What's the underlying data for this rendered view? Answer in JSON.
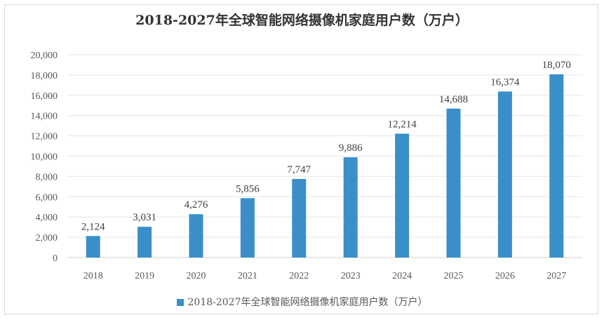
{
  "chart_data": {
    "type": "bar",
    "title": "2018-2027年全球智能网络摄像机家庭用户数（万户）",
    "categories": [
      "2018",
      "2019",
      "2020",
      "2021",
      "2022",
      "2023",
      "2024",
      "2025",
      "2026",
      "2027"
    ],
    "series": [
      {
        "name": "2018-2027年全球智能网络摄像机家庭用户数（万户）",
        "values": [
          2124,
          3031,
          4276,
          5856,
          7747,
          9886,
          12214,
          14688,
          16374,
          18070
        ],
        "labels": [
          "2,124",
          "3,031",
          "4,276",
          "5,856",
          "7,747",
          "9,886",
          "12,214",
          "14,688",
          "16,374",
          "18,070"
        ]
      }
    ],
    "ylim": [
      0,
      20000
    ],
    "yticks": [
      "0",
      "2,000",
      "4,000",
      "6,000",
      "8,000",
      "10,000",
      "12,000",
      "14,000",
      "16,000",
      "18,000",
      "20,000"
    ],
    "grid": true,
    "legend": "bottom",
    "colors": {
      "bar": "#3a8fc9",
      "grid": "#e6e6e6"
    }
  }
}
